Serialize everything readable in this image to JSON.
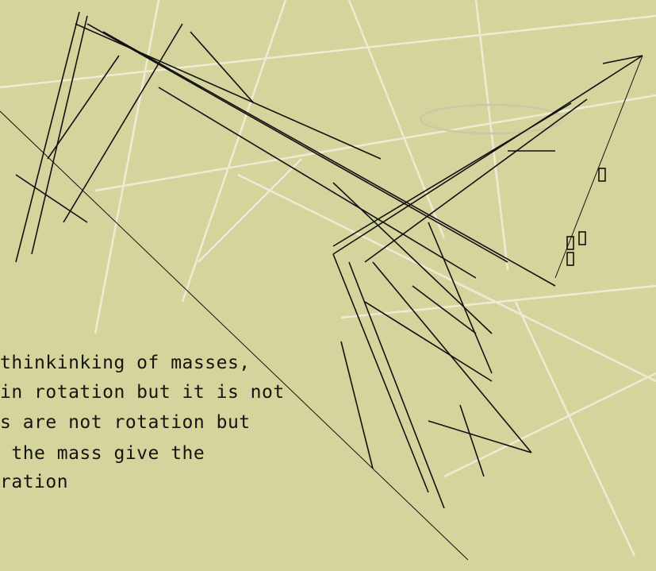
{
  "text": {
    "lines": [
      "thinkinking of masses,",
      "in rotation but it is not",
      "s are not rotation but",
      " the mass give the",
      "ration"
    ]
  }
}
